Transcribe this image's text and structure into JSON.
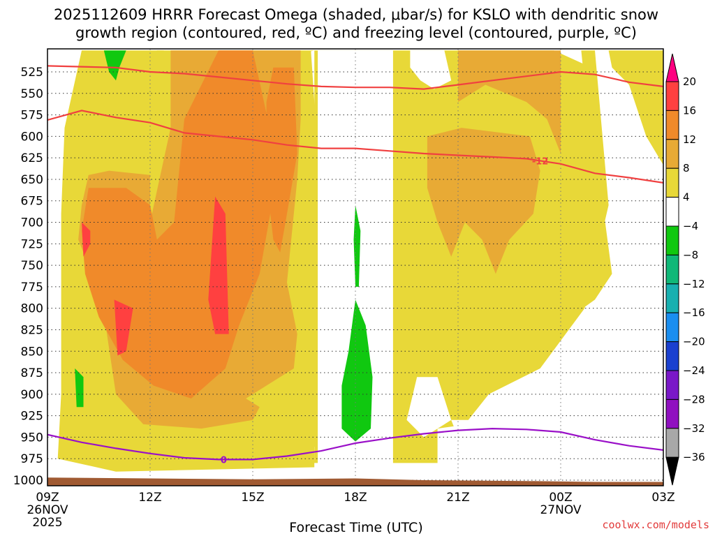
{
  "title_line1": "2025112609 HRRR Forecast Omega (shaded, μbar/s) for KSLO with dendritic snow",
  "title_line2": "growth region (contoured, red, ºC) and freezing level (contoured, purple, ºC)",
  "credit": "coolwx.com/models",
  "chart_data": {
    "type": "time-height cross-section (filled contour)",
    "x_axis": {
      "label": "Forecast Time (UTC)",
      "unit": "hours from 09Z 26NOV2025",
      "range": [
        0,
        18
      ],
      "ticks": [
        {
          "hour": 0,
          "label": "09Z",
          "sub1": "26NOV",
          "sub2": "2025"
        },
        {
          "hour": 3,
          "label": "12Z",
          "sub1": "",
          "sub2": ""
        },
        {
          "hour": 6,
          "label": "15Z",
          "sub1": "",
          "sub2": ""
        },
        {
          "hour": 9,
          "label": "18Z",
          "sub1": "",
          "sub2": ""
        },
        {
          "hour": 12,
          "label": "21Z",
          "sub1": "",
          "sub2": ""
        },
        {
          "hour": 15,
          "label": "00Z",
          "sub1": "27NOV",
          "sub2": ""
        },
        {
          "hour": 18,
          "label": "03Z",
          "sub1": "",
          "sub2": ""
        }
      ]
    },
    "y_axis": {
      "unit": "hPa",
      "range_top": 500,
      "range_bottom": 1010,
      "ticks": [
        525,
        550,
        575,
        600,
        625,
        650,
        675,
        700,
        725,
        750,
        775,
        800,
        825,
        850,
        875,
        900,
        925,
        950,
        975,
        1000
      ]
    },
    "colorbar": {
      "levels": [
        "20",
        "16",
        "12",
        "8",
        "4",
        "−4",
        "−8",
        "−12",
        "−16",
        "−20",
        "−24",
        "−28",
        "−32",
        "−36"
      ],
      "bins_top_to_bottom": [
        "#ff0080",
        "#ff4040",
        "#f08a2a",
        "#e8aa35",
        "#e8d838",
        "#ffffff",
        "#10c810",
        "#10b878",
        "#18b0b0",
        "#1a8ef0",
        "#1a40d0",
        "#7a18c8",
        "#9010c0",
        "#a8a8a8",
        "#000000"
      ]
    },
    "shading_colors": {
      "w4": "#e8d838",
      "w8": "#e8aa35",
      "w12": "#f08a2a",
      "w16": "#ff4040",
      "neg4": "#10c810"
    },
    "dgz_upper_isotherm": {
      "label": "",
      "color": "#f04040",
      "points": [
        [
          0,
          518
        ],
        [
          1,
          519
        ],
        [
          2,
          520
        ],
        [
          3,
          525
        ],
        [
          4,
          527
        ],
        [
          5,
          531
        ],
        [
          6,
          535
        ],
        [
          7,
          539
        ],
        [
          8,
          542
        ],
        [
          9,
          543
        ],
        [
          10,
          543
        ],
        [
          11,
          545
        ],
        [
          12,
          540
        ],
        [
          13,
          535
        ],
        [
          14,
          530
        ],
        [
          15,
          525
        ],
        [
          16,
          528
        ],
        [
          17,
          537
        ],
        [
          18,
          542
        ]
      ]
    },
    "dgz_lower_isotherm": {
      "label": "-12",
      "label_hour": 14.4,
      "color": "#f04040",
      "points": [
        [
          0,
          581
        ],
        [
          1,
          570
        ],
        [
          2,
          578
        ],
        [
          3,
          584
        ],
        [
          4,
          596
        ],
        [
          5,
          600
        ],
        [
          6,
          604
        ],
        [
          7,
          610
        ],
        [
          8,
          614
        ],
        [
          9,
          614
        ],
        [
          10,
          617
        ],
        [
          11,
          620
        ],
        [
          12,
          622
        ],
        [
          13,
          624
        ],
        [
          14,
          626
        ],
        [
          15,
          632
        ],
        [
          16,
          643
        ],
        [
          17,
          648
        ],
        [
          18,
          654
        ]
      ]
    },
    "freezing_level": {
      "label": "0",
      "label_hour": 5.15,
      "color": "#9a10c8",
      "points": [
        [
          0,
          947
        ],
        [
          1,
          956
        ],
        [
          2,
          963
        ],
        [
          3,
          969
        ],
        [
          4,
          974
        ],
        [
          5,
          976
        ],
        [
          6,
          976
        ],
        [
          7,
          972
        ],
        [
          8,
          966
        ],
        [
          9,
          957
        ],
        [
          10,
          951
        ],
        [
          11,
          946
        ],
        [
          12,
          942
        ],
        [
          13,
          940
        ],
        [
          14,
          941
        ],
        [
          15,
          944
        ],
        [
          16,
          953
        ],
        [
          17,
          960
        ],
        [
          18,
          965
        ]
      ]
    },
    "terrain": {
      "color": "#a05a32",
      "points": [
        [
          0,
          997
        ],
        [
          3,
          998
        ],
        [
          6,
          999
        ],
        [
          9,
          998
        ],
        [
          11,
          1000
        ],
        [
          14,
          1001
        ],
        [
          16,
          1002
        ],
        [
          18,
          1002
        ]
      ]
    }
  }
}
